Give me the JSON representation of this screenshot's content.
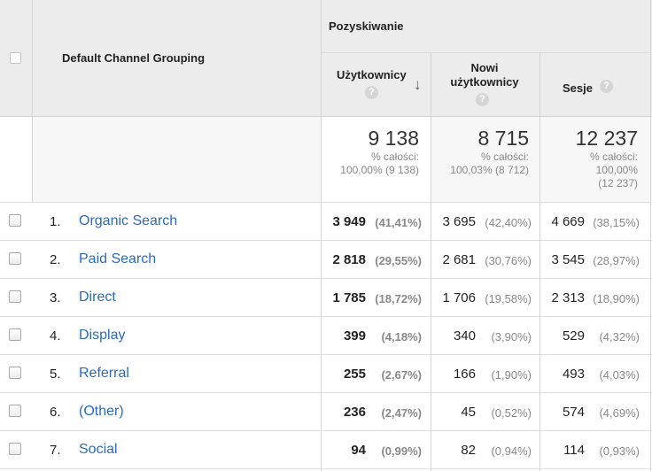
{
  "header": {
    "dimension_title": "Default Channel Grouping",
    "group_title": "Pozyskiwanie",
    "columns": [
      {
        "label_lines": [
          "Użytkownicy"
        ],
        "help": "?",
        "sort": "↓"
      },
      {
        "label_lines": [
          "Nowi",
          "użytkownicy"
        ],
        "help": "?"
      },
      {
        "label_lines": [
          "Sesje"
        ],
        "help": "?"
      }
    ]
  },
  "totals": [
    {
      "value": "9 138",
      "sub1": "% całości:",
      "sub2": "100,00% (9 138)"
    },
    {
      "value": "8 715",
      "sub1": "% całości:",
      "sub2": "100,03% (8 712)"
    },
    {
      "value": "12 237",
      "sub1": "% całości:",
      "sub2": "100,00%",
      "sub3": "(12 237)"
    }
  ],
  "rows": [
    {
      "idx": "1.",
      "channel": "Organic Search",
      "users": "3 949",
      "users_pct": "(41,41%)",
      "new": "3 695",
      "new_pct": "(42,40%)",
      "sessions": "4 669",
      "sessions_pct": "(38,15%)"
    },
    {
      "idx": "2.",
      "channel": "Paid Search",
      "users": "2 818",
      "users_pct": "(29,55%)",
      "new": "2 681",
      "new_pct": "(30,76%)",
      "sessions": "3 545",
      "sessions_pct": "(28,97%)"
    },
    {
      "idx": "3.",
      "channel": "Direct",
      "users": "1 785",
      "users_pct": "(18,72%)",
      "new": "1 706",
      "new_pct": "(19,58%)",
      "sessions": "2 313",
      "sessions_pct": "(18,90%)"
    },
    {
      "idx": "4.",
      "channel": "Display",
      "users": "399",
      "users_pct": "(4,18%)",
      "new": "340",
      "new_pct": "(3,90%)",
      "sessions": "529",
      "sessions_pct": "(4,32%)"
    },
    {
      "idx": "5.",
      "channel": "Referral",
      "users": "255",
      "users_pct": "(2,67%)",
      "new": "166",
      "new_pct": "(1,90%)",
      "sessions": "493",
      "sessions_pct": "(4,03%)"
    },
    {
      "idx": "6.",
      "channel": "(Other)",
      "users": "236",
      "users_pct": "(2,47%)",
      "new": "45",
      "new_pct": "(0,52%)",
      "sessions": "574",
      "sessions_pct": "(4,69%)"
    },
    {
      "idx": "7.",
      "channel": "Social",
      "users": "94",
      "users_pct": "(0,99%)",
      "new": "82",
      "new_pct": "(0,94%)",
      "sessions": "114",
      "sessions_pct": "(0,93%)"
    }
  ]
}
